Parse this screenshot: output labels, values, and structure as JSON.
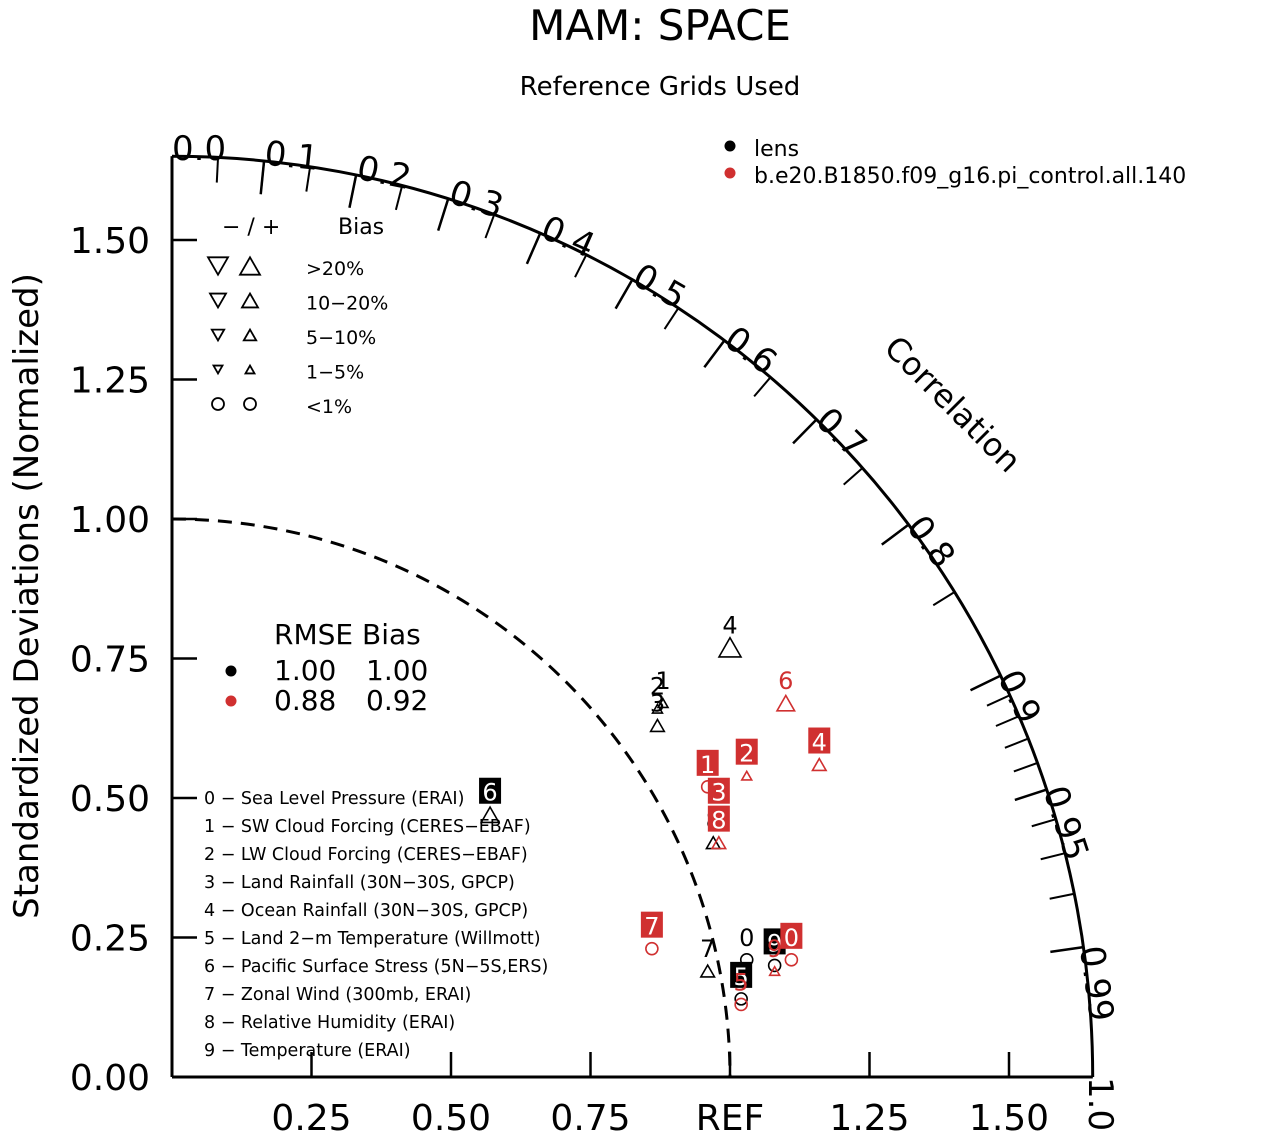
{
  "chart_data": {
    "type": "scatter",
    "subtype": "taylor-diagram",
    "title": "MAM: SPACE",
    "subtitle": "Reference Grids Used",
    "ylabel": "Standardized Deviations (Normalized)",
    "correlation_label": "Correlation",
    "std_max": 1.65,
    "y_ticks": [
      "0.00",
      "0.25",
      "0.50",
      "0.75",
      "1.00",
      "1.25",
      "1.50"
    ],
    "x_ticks": [
      "0.25",
      "0.50",
      "0.75",
      "REF",
      "1.25",
      "1.50"
    ],
    "correlation_ticks": [
      "0.0",
      "0.1",
      "0.2",
      "0.3",
      "0.4",
      "0.5",
      "0.6",
      "0.7",
      "0.8",
      "0.9",
      "0.95",
      "0.99",
      "1.0"
    ],
    "models": [
      {
        "name": "lens",
        "color": "#000000"
      },
      {
        "name": "b.e20.B1850.f09_g16.pi_control.all.140",
        "color": "#d03030"
      }
    ],
    "bias_legend": {
      "header_sign": "− / +",
      "header_label": "Bias",
      "rows": [
        {
          "label": ">20%",
          "symbol": "triangle",
          "size": 1.0
        },
        {
          "label": "10−20%",
          "symbol": "triangle",
          "size": 0.8
        },
        {
          "label": "5−10%",
          "symbol": "triangle",
          "size": 0.62
        },
        {
          "label": "1−5%",
          "symbol": "triangle",
          "size": 0.45
        },
        {
          "label": "<1%",
          "symbol": "circle",
          "size": 0.7
        }
      ]
    },
    "rmse_bias": {
      "header": "RMSE Bias",
      "rows": [
        {
          "color": "#000000",
          "rmse": "1.00",
          "bias": "1.00"
        },
        {
          "color": "#d03030",
          "rmse": "0.88",
          "bias": "0.92"
        }
      ]
    },
    "variables": [
      "0 − Sea Level Pressure (ERAI)",
      "1 − SW Cloud Forcing (CERES−EBAF)",
      "2 − LW Cloud Forcing (CERES−EBAF)",
      "3 − Land Rainfall (30N−30S, GPCP)",
      "4 − Ocean Rainfall (30N−30S, GPCP)",
      "5 − Land 2−m Temperature (Willmott)",
      "6 − Pacific Surface Stress (5N−5S,ERS)",
      "7 − Zonal Wind (300mb, ERAI)",
      "8 − Relative Humidity (ERAI)",
      "9 − Temperature (ERAI)"
    ],
    "points": [
      {
        "model": 0,
        "label": "0",
        "x": 1.03,
        "y": 0.21,
        "marker": "circle",
        "size": 0.7,
        "boxed": false
      },
      {
        "model": 0,
        "label": "1",
        "x": 0.88,
        "y": 0.67,
        "marker": "triangle-up",
        "size": 0.45,
        "boxed": false
      },
      {
        "model": 0,
        "label": "2",
        "x": 0.87,
        "y": 0.66,
        "marker": "triangle-up",
        "size": 0.45,
        "boxed": false
      },
      {
        "model": 0,
        "label": "3",
        "x": 0.87,
        "y": 0.63,
        "marker": "triangle-up",
        "size": 0.62,
        "boxed": false
      },
      {
        "model": 0,
        "label": "4",
        "x": 1.0,
        "y": 0.77,
        "marker": "triangle-up",
        "size": 1.0,
        "boxed": false
      },
      {
        "model": 0,
        "label": "5",
        "x": 1.02,
        "y": 0.14,
        "marker": "circle",
        "size": 0.7,
        "boxed": true
      },
      {
        "model": 0,
        "label": "6",
        "x": 0.57,
        "y": 0.47,
        "marker": "triangle-up",
        "size": 0.8,
        "boxed": true
      },
      {
        "model": 0,
        "label": "7",
        "x": 0.96,
        "y": 0.19,
        "marker": "triangle-up",
        "size": 0.62,
        "boxed": false
      },
      {
        "model": 0,
        "label": "8",
        "x": 0.97,
        "y": 0.42,
        "marker": "triangle-up",
        "size": 0.62,
        "boxed": false
      },
      {
        "model": 0,
        "label": "9",
        "x": 1.08,
        "y": 0.2,
        "marker": "circle",
        "size": 0.7,
        "boxed": true
      },
      {
        "model": 1,
        "label": "0",
        "x": 1.11,
        "y": 0.21,
        "marker": "circle",
        "size": 0.7,
        "boxed": true
      },
      {
        "model": 1,
        "label": "1",
        "x": 0.96,
        "y": 0.52,
        "marker": "circle",
        "size": 0.7,
        "boxed": true
      },
      {
        "model": 1,
        "label": "2",
        "x": 1.03,
        "y": 0.54,
        "marker": "triangle-up",
        "size": 0.45,
        "boxed": true
      },
      {
        "model": 1,
        "label": "3",
        "x": 0.98,
        "y": 0.47,
        "marker": "triangle-up",
        "size": 0.62,
        "boxed": true
      },
      {
        "model": 1,
        "label": "4",
        "x": 1.16,
        "y": 0.56,
        "marker": "triangle-up",
        "size": 0.62,
        "boxed": true
      },
      {
        "model": 1,
        "label": "5",
        "x": 1.02,
        "y": 0.13,
        "marker": "circle",
        "size": 0.7,
        "boxed": false
      },
      {
        "model": 1,
        "label": "6",
        "x": 1.1,
        "y": 0.67,
        "marker": "triangle-up",
        "size": 0.8,
        "boxed": false
      },
      {
        "model": 1,
        "label": "7",
        "x": 0.86,
        "y": 0.23,
        "marker": "circle",
        "size": 0.7,
        "boxed": true
      },
      {
        "model": 1,
        "label": "8",
        "x": 0.98,
        "y": 0.42,
        "marker": "triangle-up",
        "size": 0.62,
        "boxed": true
      },
      {
        "model": 1,
        "label": "9",
        "x": 1.08,
        "y": 0.19,
        "marker": "triangle-up",
        "size": 0.45,
        "boxed": false
      }
    ]
  }
}
